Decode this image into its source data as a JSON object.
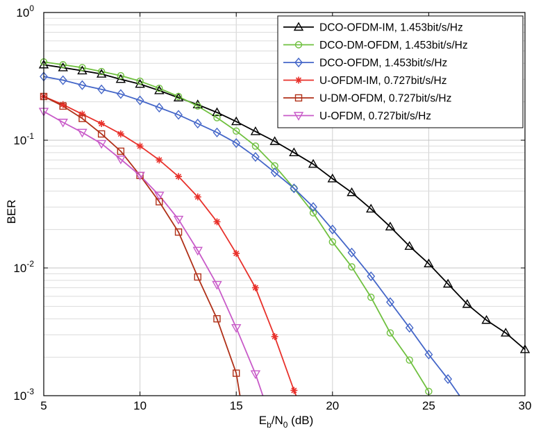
{
  "chart_data": {
    "type": "line",
    "xlabel": {
      "main": "E",
      "sub1": "b",
      "mid": "/N",
      "sub2": "0",
      "tail": " (dB)"
    },
    "ylabel": "BER",
    "xlim": [
      5,
      30
    ],
    "ylim": [
      0.001,
      1
    ],
    "yscale": "log",
    "grid": true,
    "legend_position": "top-right",
    "x_ticks": [
      "5",
      "10",
      "15",
      "20",
      "25",
      "30"
    ],
    "y_ticks": [
      {
        "value": 1,
        "base": "10",
        "exp": "0"
      },
      {
        "value": 0.1,
        "base": "10",
        "exp": "-1"
      },
      {
        "value": 0.01,
        "base": "10",
        "exp": "-2"
      },
      {
        "value": 0.001,
        "base": "10",
        "exp": "-3"
      }
    ],
    "series": [
      {
        "name": "DCO-OFDM-IM, 1.453bit/s/Hz",
        "color": "#000000",
        "marker": "triangle-up",
        "x": [
          5,
          6,
          7,
          8,
          9,
          10,
          11,
          12,
          13,
          14,
          15,
          16,
          17,
          18,
          19,
          20,
          21,
          22,
          23,
          24,
          25,
          26,
          27,
          28,
          29,
          30
        ],
        "y": [
          0.39,
          0.37,
          0.35,
          0.33,
          0.3,
          0.275,
          0.245,
          0.215,
          0.19,
          0.165,
          0.14,
          0.117,
          0.098,
          0.08,
          0.065,
          0.05,
          0.039,
          0.029,
          0.021,
          0.0148,
          0.0108,
          0.0075,
          0.0052,
          0.0039,
          0.0031,
          0.0023
        ]
      },
      {
        "name": "DCO-DM-OFDM, 1.453bit/s/Hz",
        "color": "#6fc03f",
        "marker": "circle",
        "x": [
          5,
          6,
          7,
          8,
          9,
          10,
          11,
          12,
          13,
          14,
          15,
          16,
          17,
          18,
          19,
          20,
          21,
          22,
          23,
          24,
          25
        ],
        "y": [
          0.41,
          0.39,
          0.37,
          0.345,
          0.32,
          0.29,
          0.255,
          0.22,
          0.185,
          0.15,
          0.118,
          0.09,
          0.063,
          0.042,
          0.027,
          0.016,
          0.0102,
          0.0059,
          0.0031,
          0.0019,
          0.00108
        ]
      },
      {
        "name": "DCO-OFDM, 1.453bit/s/Hz",
        "color": "#4466c8",
        "marker": "diamond",
        "x": [
          5,
          6,
          7,
          8,
          9,
          10,
          11,
          12,
          13,
          14,
          15,
          16,
          17,
          18,
          19,
          20,
          21,
          22,
          23,
          24,
          25,
          26,
          27
        ],
        "y": [
          0.315,
          0.295,
          0.27,
          0.25,
          0.23,
          0.205,
          0.18,
          0.158,
          0.135,
          0.115,
          0.095,
          0.074,
          0.056,
          0.042,
          0.03,
          0.02,
          0.0132,
          0.0086,
          0.0054,
          0.0034,
          0.0021,
          0.00135,
          0.00082
        ]
      },
      {
        "name": "U-OFDM-IM, 0.727bit/s/Hz",
        "color": "#e8302a",
        "marker": "star",
        "x": [
          5,
          6,
          7,
          8,
          9,
          10,
          11,
          12,
          13,
          14,
          15,
          16,
          17,
          18,
          18.3
        ],
        "y": [
          0.22,
          0.19,
          0.16,
          0.135,
          0.112,
          0.09,
          0.07,
          0.052,
          0.036,
          0.023,
          0.013,
          0.007,
          0.0029,
          0.0011,
          0.00085
        ]
      },
      {
        "name": "U-DM-OFDM, 0.727bit/s/Hz",
        "color": "#b03018",
        "marker": "square",
        "x": [
          5,
          6,
          7,
          8,
          9,
          10,
          11,
          12,
          13,
          14,
          15,
          15.3
        ],
        "y": [
          0.22,
          0.185,
          0.148,
          0.112,
          0.082,
          0.053,
          0.033,
          0.0191,
          0.0085,
          0.004,
          0.0015,
          0.0008
        ]
      },
      {
        "name": "U-OFDM, 0.727bit/s/Hz",
        "color": "#c85ac8",
        "marker": "triangle-down",
        "x": [
          5,
          6,
          7,
          8,
          9,
          10,
          11,
          12,
          13,
          14,
          15,
          16,
          16.6
        ],
        "y": [
          0.168,
          0.138,
          0.115,
          0.094,
          0.071,
          0.053,
          0.037,
          0.024,
          0.0137,
          0.0074,
          0.0034,
          0.00148,
          0.0008
        ]
      }
    ]
  }
}
